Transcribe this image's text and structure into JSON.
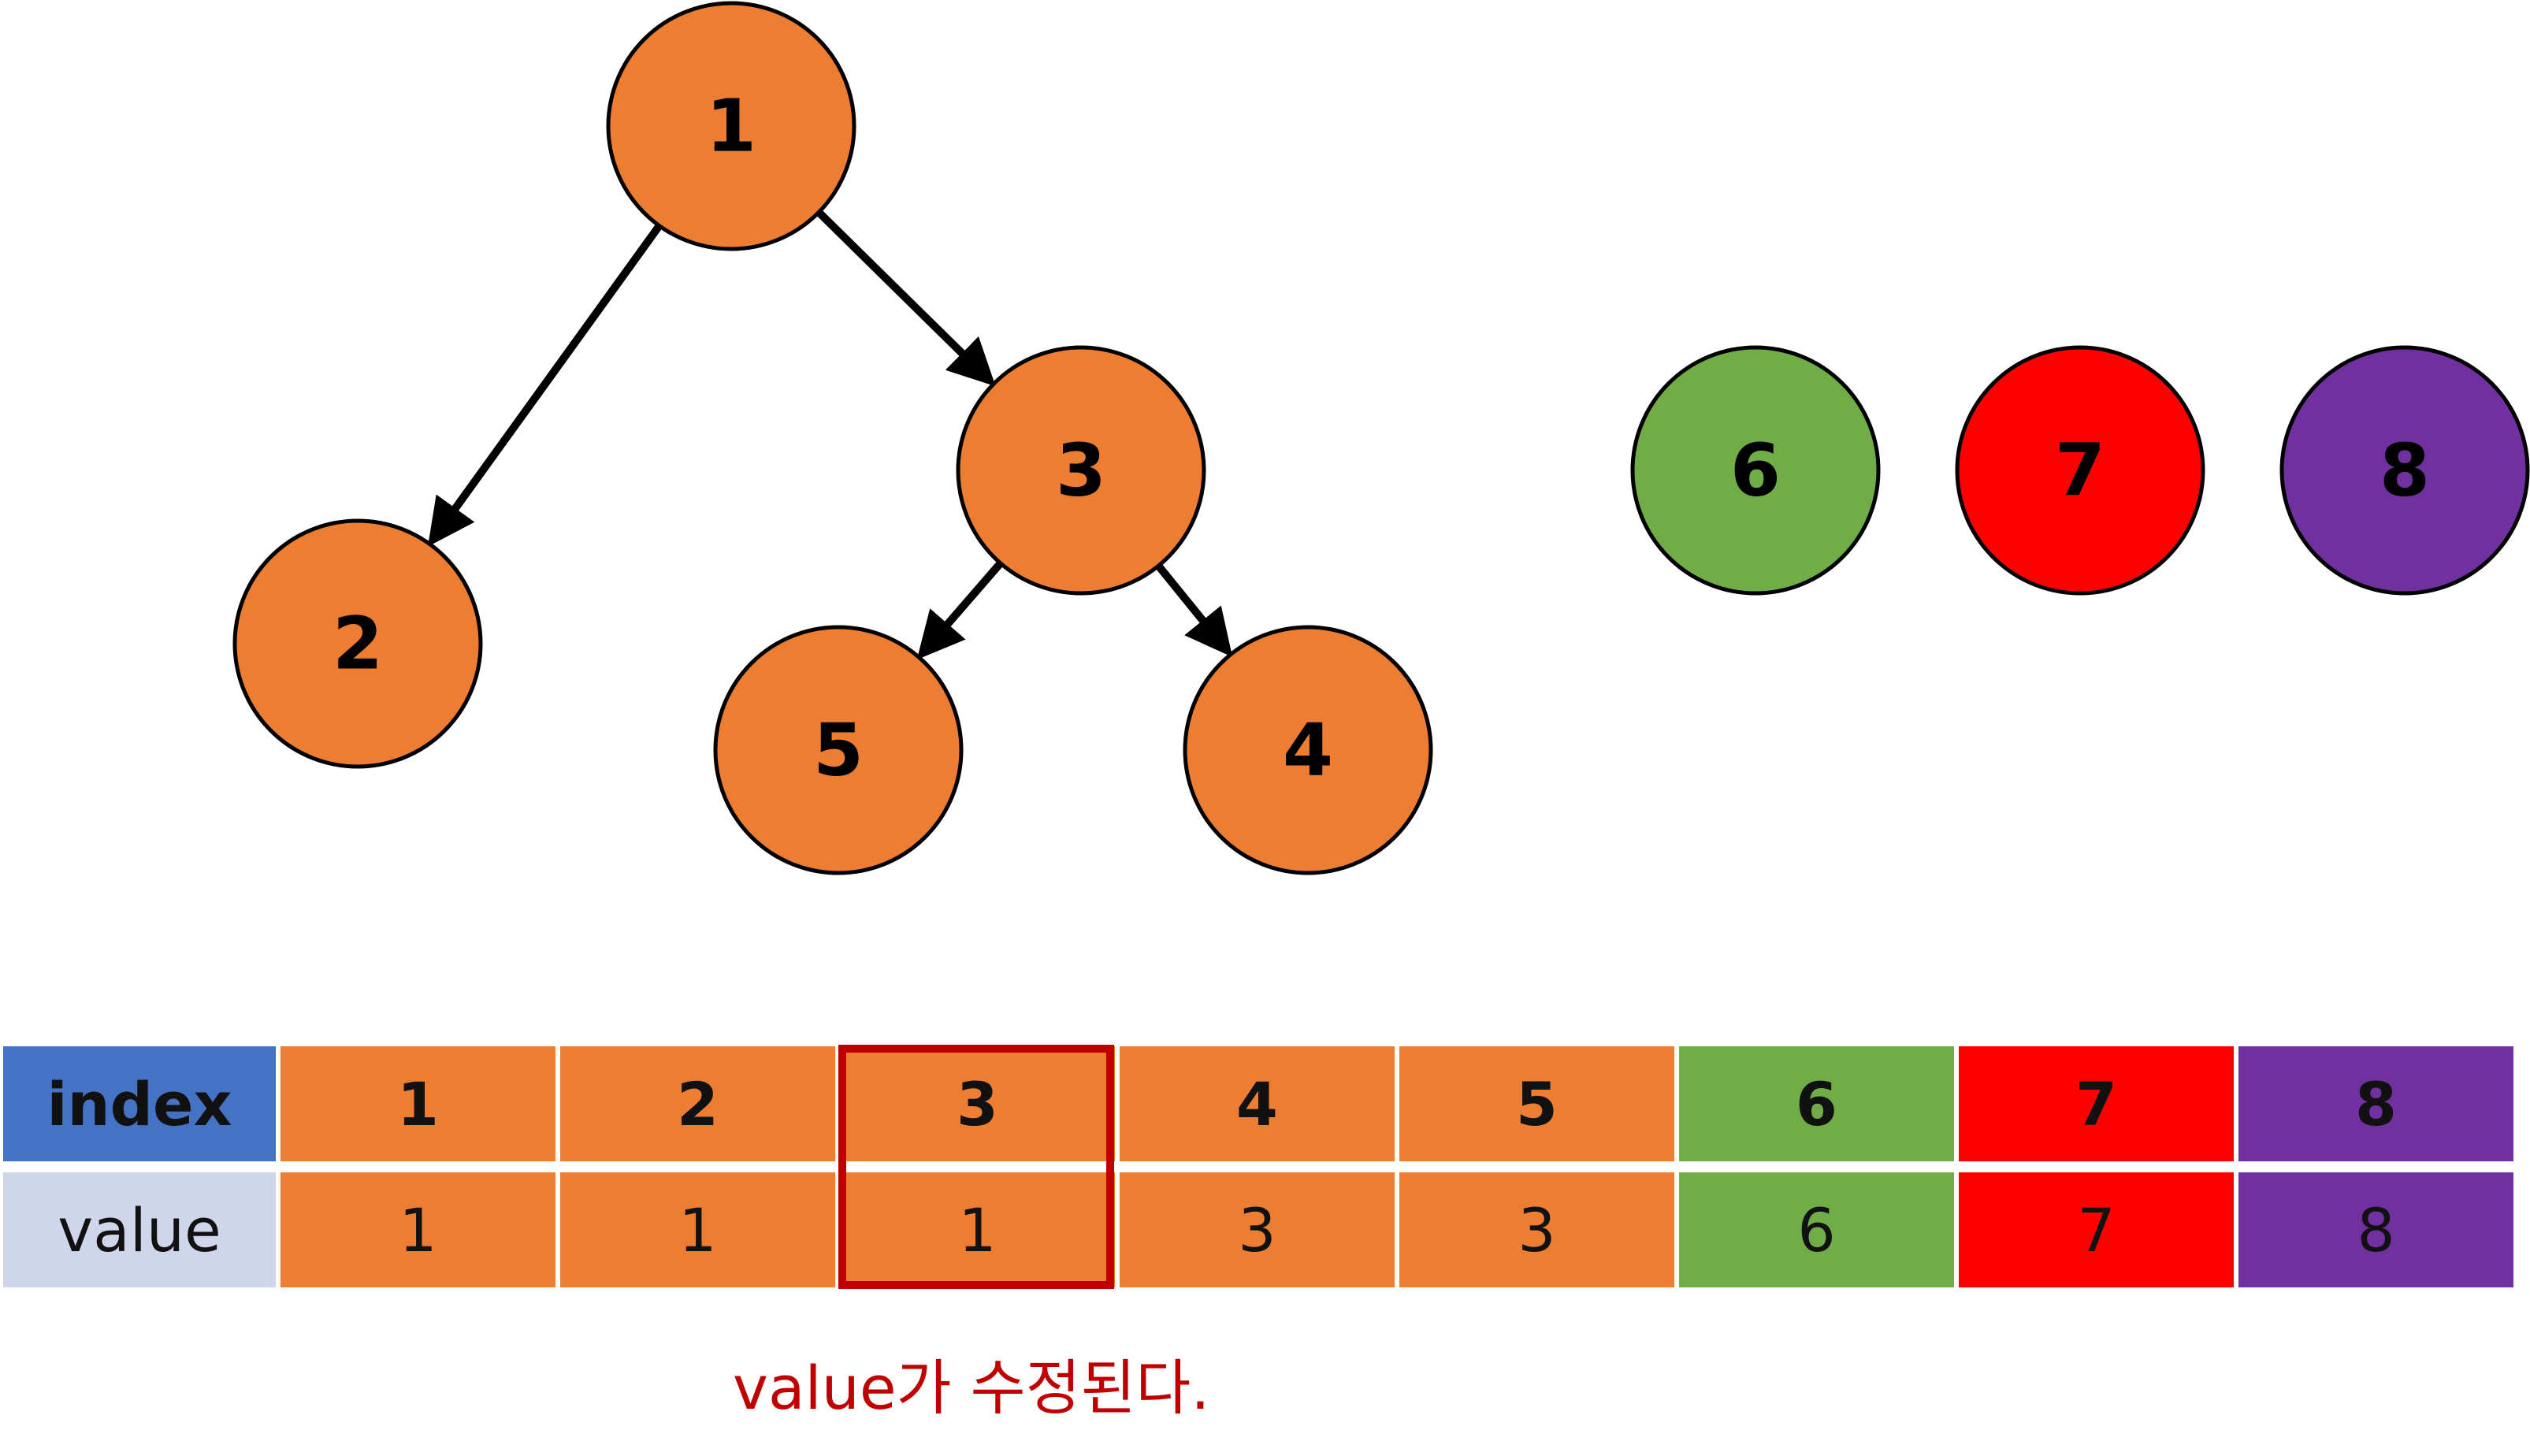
{
  "tree": {
    "nodes": [
      {
        "id": "1",
        "label": "1",
        "color": "#ED7D31"
      },
      {
        "id": "2",
        "label": "2",
        "color": "#ED7D31"
      },
      {
        "id": "3",
        "label": "3",
        "color": "#ED7D31"
      },
      {
        "id": "5",
        "label": "5",
        "color": "#ED7D31"
      },
      {
        "id": "4",
        "label": "4",
        "color": "#ED7D31"
      },
      {
        "id": "6",
        "label": "6",
        "color": "#70AD47"
      },
      {
        "id": "7",
        "label": "7",
        "color": "#FF0000"
      },
      {
        "id": "8",
        "label": "8",
        "color": "#7030A0"
      }
    ],
    "edges": [
      {
        "from": "1",
        "to": "2"
      },
      {
        "from": "1",
        "to": "3"
      },
      {
        "from": "3",
        "to": "5"
      },
      {
        "from": "3",
        "to": "4"
      }
    ]
  },
  "table": {
    "index_header": "index",
    "value_header": "value",
    "index_header_color": "#4472C4",
    "value_header_color": "#CFD5EA",
    "columns": [
      {
        "index": "1",
        "value": "1",
        "color": "#ED7D31"
      },
      {
        "index": "2",
        "value": "1",
        "color": "#ED7D31"
      },
      {
        "index": "3",
        "value": "1",
        "color": "#ED7D31"
      },
      {
        "index": "4",
        "value": "3",
        "color": "#ED7D31"
      },
      {
        "index": "5",
        "value": "3",
        "color": "#ED7D31"
      },
      {
        "index": "6",
        "value": "6",
        "color": "#70AD47"
      },
      {
        "index": "7",
        "value": "7",
        "color": "#FF0000"
      },
      {
        "index": "8",
        "value": "8",
        "color": "#7030A0"
      }
    ],
    "highlight_color": "#C00000"
  },
  "caption": "value가 수정된다."
}
